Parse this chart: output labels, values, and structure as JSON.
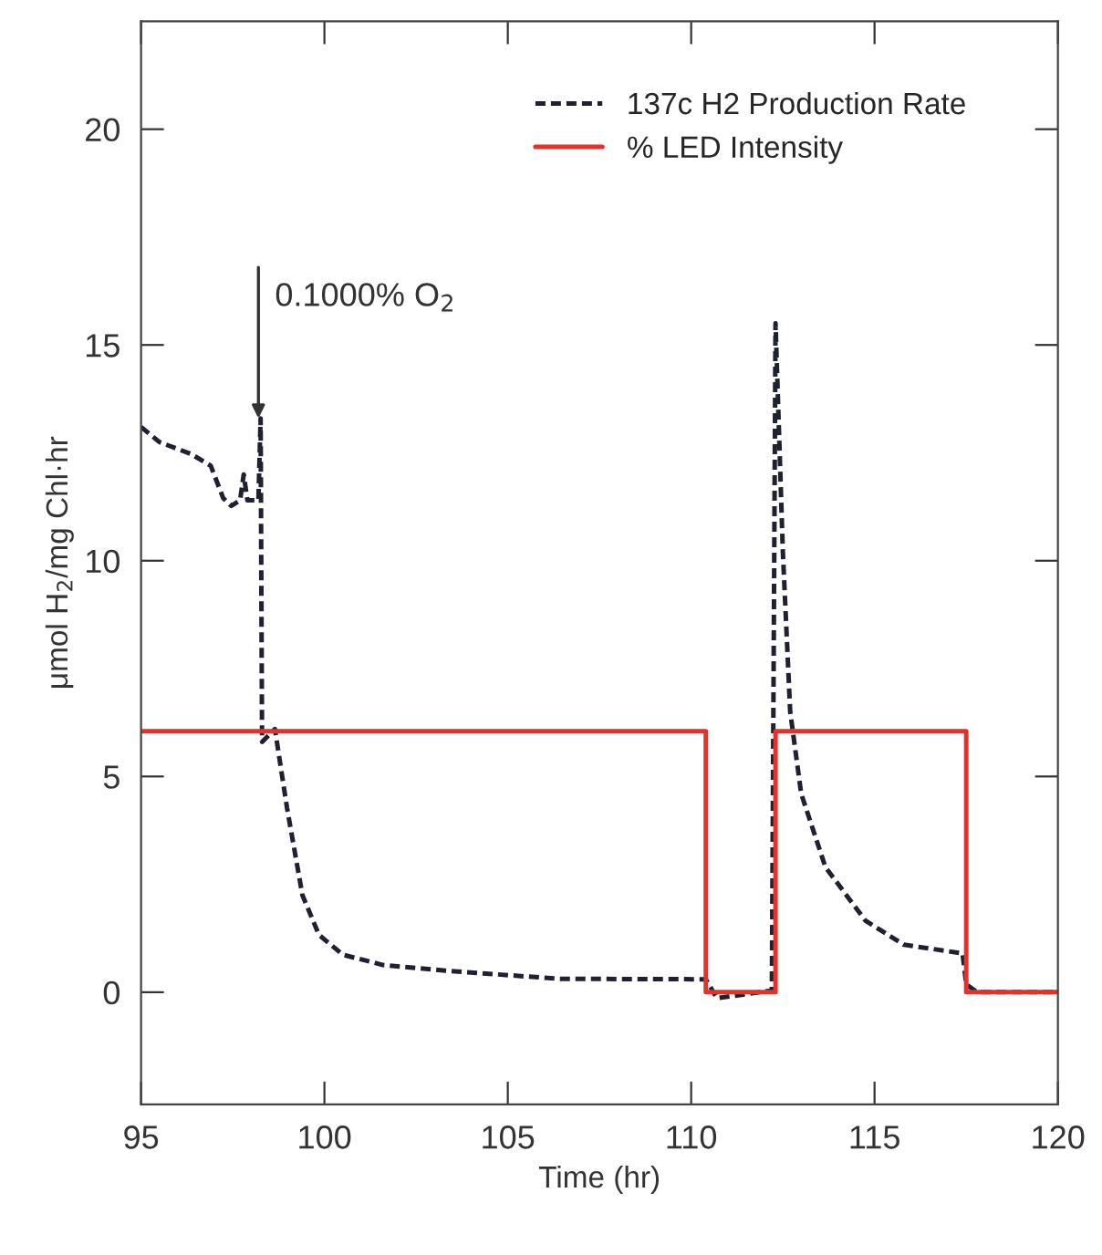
{
  "chart_data": {
    "type": "line",
    "xlabel": "Time (hr)",
    "ylabel": "μmol H$_{2}$/mg Chl·hr",
    "xlim": [
      95,
      120
    ],
    "xticks": [
      95,
      100,
      105,
      110,
      115,
      120
    ],
    "ylim": [
      -2.6,
      22.5
    ],
    "yticks": [
      0,
      5,
      10,
      15,
      20
    ],
    "grid": false,
    "legend": "top right",
    "marker": "none",
    "annotations": [
      {
        "text": "0.1000% O$_{2}$",
        "x": 98.2,
        "y": 13.3
      }
    ],
    "series": [
      {
        "name": "137c H2 Production Rate",
        "color": "#1f2030",
        "line_style": "dashed",
        "x": [
          95,
          95.5,
          96.37,
          96.9,
          97.24,
          97.46,
          97.7,
          97.8,
          97.9,
          98.2,
          98.26,
          98.28,
          98.3,
          98.65,
          98.98,
          99.4,
          99.85,
          100.5,
          101.6,
          103.3,
          106.4,
          110.4,
          110.7,
          112.2,
          112.3,
          112.5,
          112.7,
          113.0,
          113.66,
          114.75,
          115.8,
          117.4,
          117.5,
          117.8,
          120
        ],
        "values": [
          13.1,
          12.75,
          12.47,
          12.2,
          11.45,
          11.27,
          11.4,
          12.0,
          11.4,
          11.4,
          13.3,
          9.4,
          5.8,
          6.1,
          4.27,
          2.25,
          1.33,
          0.87,
          0.63,
          0.5,
          0.31,
          0.3,
          -0.14,
          0.04,
          15.5,
          10.2,
          6.5,
          4.6,
          2.9,
          1.66,
          1.1,
          0.9,
          0.18,
          0.0,
          0.0
        ]
      },
      {
        "name": "% LED Intensity",
        "type": "step",
        "color": "#e8302a",
        "line_style": "solid",
        "x": [
          95,
          110.4,
          112.3,
          117.5,
          120
        ],
        "values": [
          6.05,
          0,
          6.05,
          0,
          0
        ]
      }
    ]
  }
}
